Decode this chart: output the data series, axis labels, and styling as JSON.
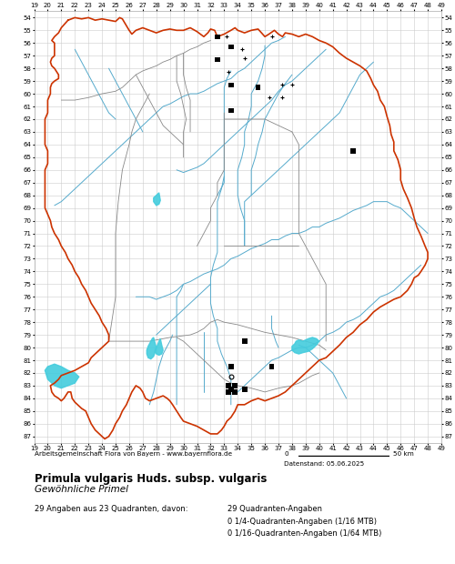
{
  "title": "Primula vulgaris Huds. subsp. vulgaris",
  "subtitle": "Gewöhnliche Primel",
  "attribution": "Arbeitsgemeinschaft Flora von Bayern - www.bayernflora.de",
  "date_label": "Datenstand: 05.06.2025",
  "stats_line1": "29 Angaben aus 23 Quadranten, davon:",
  "stats_right1": "29 Quadranten-Angaben",
  "stats_right2": "0 1/4-Quadranten-Angaben (1/16 MTB)",
  "stats_right3": "0 1/16-Quadranten-Angaben (1/64 MTB)",
  "x_ticks": [
    19,
    20,
    21,
    22,
    23,
    24,
    25,
    26,
    27,
    28,
    29,
    30,
    31,
    32,
    33,
    34,
    35,
    36,
    37,
    38,
    39,
    40,
    41,
    42,
    43,
    44,
    45,
    46,
    47,
    48,
    49
  ],
  "y_ticks": [
    54,
    55,
    56,
    57,
    58,
    59,
    60,
    61,
    62,
    63,
    64,
    65,
    66,
    67,
    68,
    69,
    70,
    71,
    72,
    73,
    74,
    75,
    76,
    77,
    78,
    79,
    80,
    81,
    82,
    83,
    84,
    85,
    86,
    87
  ],
  "x_min": 19,
  "x_max": 49,
  "y_min": 54,
  "y_max": 87,
  "bg_color": "#ffffff",
  "grid_color": "#cccccc",
  "state_border_color": "#cc3300",
  "district_color": "#888888",
  "river_color": "#55aacc",
  "lake_color": "#44ccdd",
  "marker_color": "#000000",
  "state_border_lw": 1.2,
  "district_lw": 0.6,
  "river_lw": 0.7,
  "square_size": 0.38,
  "square_markers": [
    [
      32.5,
      55.5
    ],
    [
      33.5,
      56.3
    ],
    [
      32.5,
      57.3
    ],
    [
      33.5,
      59.3
    ],
    [
      33.5,
      61.3
    ],
    [
      35.5,
      59.5
    ],
    [
      42.5,
      64.5
    ],
    [
      34.5,
      79.5
    ],
    [
      33.5,
      81.5
    ],
    [
      36.5,
      81.5
    ],
    [
      33.5,
      83.3
    ],
    [
      34.5,
      83.3
    ]
  ],
  "dot_markers": [
    [
      33.2,
      55.5
    ],
    [
      34.3,
      56.5
    ],
    [
      34.5,
      57.2
    ],
    [
      33.3,
      58.3
    ],
    [
      37.3,
      59.3
    ],
    [
      38.0,
      59.3
    ],
    [
      36.3,
      60.3
    ],
    [
      37.3,
      60.3
    ],
    [
      36.5,
      55.5
    ]
  ],
  "circle_markers": [
    [
      33.5,
      82.3
    ]
  ],
  "cluster_sq": [
    [
      33.3,
      83.5
    ],
    [
      33.8,
      83.5
    ],
    [
      33.3,
      83.0
    ],
    [
      33.8,
      83.0
    ]
  ]
}
